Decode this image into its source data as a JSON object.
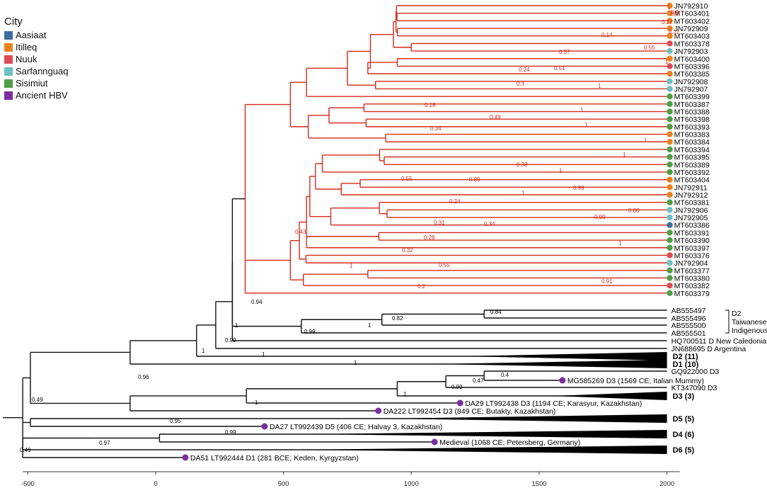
{
  "legend": {
    "title": "City",
    "items": [
      {
        "label": "Aasiaat",
        "color": "#3f6e9e"
      },
      {
        "label": "Itilleq",
        "color": "#f0821e"
      },
      {
        "label": "Nuuk",
        "color": "#e04a55"
      },
      {
        "label": "Sarfannguaq",
        "color": "#6cbfc3"
      },
      {
        "label": "Sisimiut",
        "color": "#4e9f45"
      },
      {
        "label": "Ancient HBV",
        "color": "#7a2fa0"
      }
    ]
  },
  "axis": {
    "ticks": [
      -500,
      0,
      500,
      1000,
      1500,
      2000
    ],
    "range": [
      -520,
      2050
    ]
  },
  "leaves": [
    {
      "label": "JN792910",
      "city": "Itilleq"
    },
    {
      "label": "MT603401",
      "city": "Itilleq"
    },
    {
      "label": "MT603402",
      "city": "Itilleq"
    },
    {
      "label": "JN792909",
      "city": "Itilleq"
    },
    {
      "label": "MT603403",
      "city": "Itilleq"
    },
    {
      "label": "MT603378",
      "city": "Nuuk"
    },
    {
      "label": "JN792903",
      "city": "Sarfannguaq"
    },
    {
      "label": "MT603400",
      "city": "Itilleq"
    },
    {
      "label": "MT603396",
      "city": "Nuuk"
    },
    {
      "label": "MT603385",
      "city": "Itilleq"
    },
    {
      "label": "JN792908",
      "city": "Sarfannguaq"
    },
    {
      "label": "JN792907",
      "city": "Sarfannguaq"
    },
    {
      "label": "MT603399",
      "city": "Sisimiut"
    },
    {
      "label": "MT603387",
      "city": "Sisimiut"
    },
    {
      "label": "MT603388",
      "city": "Sisimiut"
    },
    {
      "label": "MT603398",
      "city": "Sisimiut"
    },
    {
      "label": "MT603393",
      "city": "Sisimiut"
    },
    {
      "label": "MT603383",
      "city": "Itilleq"
    },
    {
      "label": "MT603384",
      "city": "Itilleq"
    },
    {
      "label": "MT603394",
      "city": "Sisimiut"
    },
    {
      "label": "MT603395",
      "city": "Sisimiut"
    },
    {
      "label": "MT603389",
      "city": "Sisimiut"
    },
    {
      "label": "MT603392",
      "city": "Sisimiut"
    },
    {
      "label": "MT603404",
      "city": "Itilleq"
    },
    {
      "label": "JN792911",
      "city": "Itilleq"
    },
    {
      "label": "JN792912",
      "city": "Itilleq"
    },
    {
      "label": "MT603381",
      "city": "Sisimiut"
    },
    {
      "label": "JN792906",
      "city": "Sarfannguaq"
    },
    {
      "label": "JN792905",
      "city": "Sarfannguaq"
    },
    {
      "label": "MT603386",
      "city": "Aasiaat"
    },
    {
      "label": "MT603391",
      "city": "Sisimiut"
    },
    {
      "label": "MT603390",
      "city": "Sisimiut"
    },
    {
      "label": "MT603397",
      "city": "Sisimiut"
    },
    {
      "label": "MT603376",
      "city": "Nuuk"
    },
    {
      "label": "JN792904",
      "city": "Sarfannguaq"
    },
    {
      "label": "MT603377",
      "city": "Sisimiut"
    },
    {
      "label": "MT603380",
      "city": "Sisimiut"
    },
    {
      "label": "MT603382",
      "city": "Nuuk"
    },
    {
      "label": "MT603379",
      "city": "Sisimiut"
    }
  ],
  "black_leaves": [
    "AB555497",
    "AB555496",
    "AB555500",
    "AB555501",
    "HQ700511  D New Caledonia",
    "JN688695  D Argentina"
  ],
  "bracket_label": [
    "D2",
    "Taiwanese",
    "Indigenous"
  ],
  "collapsed": [
    "D2 (11)",
    "D1 (10)",
    "D3 (3)",
    "D5 (5)",
    "D4 (6)",
    "D6 (5)"
  ],
  "d3_labels": [
    "GQ922000  D3",
    "KT347090  D3"
  ],
  "ancient": [
    "MG585269  D3 (1569 CE; Italian Mummy)",
    "DA29  LT992438  D3 (1194 CE; Karasyur,  Kazakhstan)",
    "DA222  LT992454  D3 (849 CE; Butakty,  Kazakhstan)",
    "DA27  LT992439  D5 (406 CE; Halvay 3, Kazakhstan)",
    "Medieval  (1068 CE; Petersberg,  Germany)",
    "DA51  LT992444  D1 (281 BCE;  Keden,  Kyrgyzstan)"
  ],
  "red_supports": [
    "1",
    "0.9",
    "0.6",
    "0.27",
    "0.11",
    "0.14",
    "0.55",
    "0.37",
    "1",
    "0.51",
    "0.24",
    "1",
    "0.3",
    "0.18",
    "0.49",
    "1",
    "1",
    "0.34",
    "1",
    "1",
    "0.38",
    "1",
    "0.09",
    "0.99",
    "1",
    "0.24",
    "0.86",
    "0.99",
    "0.31",
    "0.34",
    "0.28",
    "1",
    "0.32",
    "0.55",
    "0.91",
    "0.2",
    "0.55",
    "1",
    "0.43"
  ],
  "black_supports": [
    "0.84",
    "0.82",
    "1",
    "0.99",
    "0.94",
    "1",
    "0.99",
    "1",
    "1",
    "1",
    "0.96",
    "0.4",
    "0.47",
    "0.99",
    "1",
    "1",
    "0.49",
    "0.95",
    "0.99",
    "0.97",
    "0.49"
  ]
}
